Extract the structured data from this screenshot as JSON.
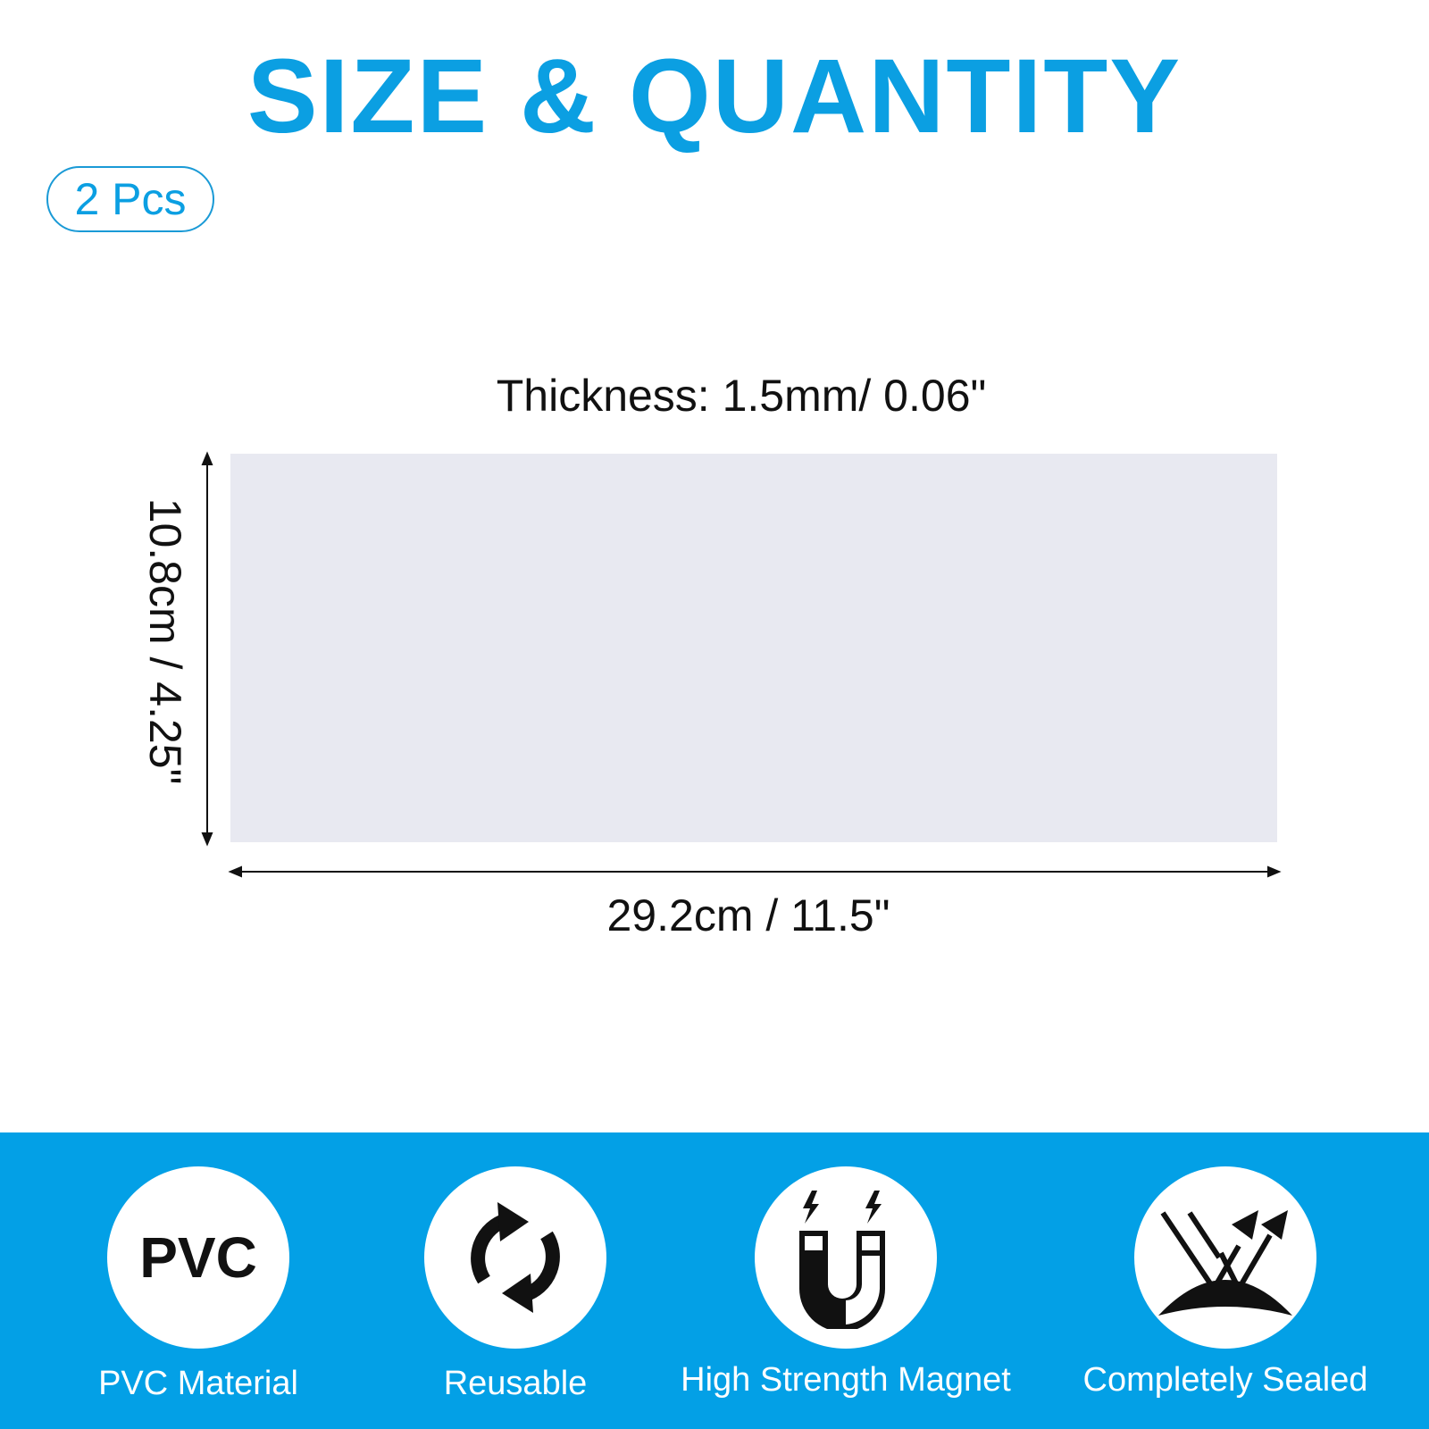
{
  "title": "SIZE & QUANTITY",
  "quantity_badge": "2 Pcs",
  "thickness": "Thickness: 1.5mm/ 0.06\"",
  "height_label": "10.8cm / 4.25\"",
  "width_label": "29.2cm / 11.5\"",
  "colors": {
    "accent": "#0b9fe2",
    "band": "#03a0e6",
    "sheet": "#e8e9f1"
  },
  "features": [
    {
      "icon": "pvc-icon",
      "icon_text": "PVC",
      "label": "PVC Material"
    },
    {
      "icon": "refresh-icon",
      "label": "Reusable"
    },
    {
      "icon": "magnet-icon",
      "label": "High Strength Magnet"
    },
    {
      "icon": "sealed-icon",
      "label": "Completely Sealed"
    }
  ]
}
